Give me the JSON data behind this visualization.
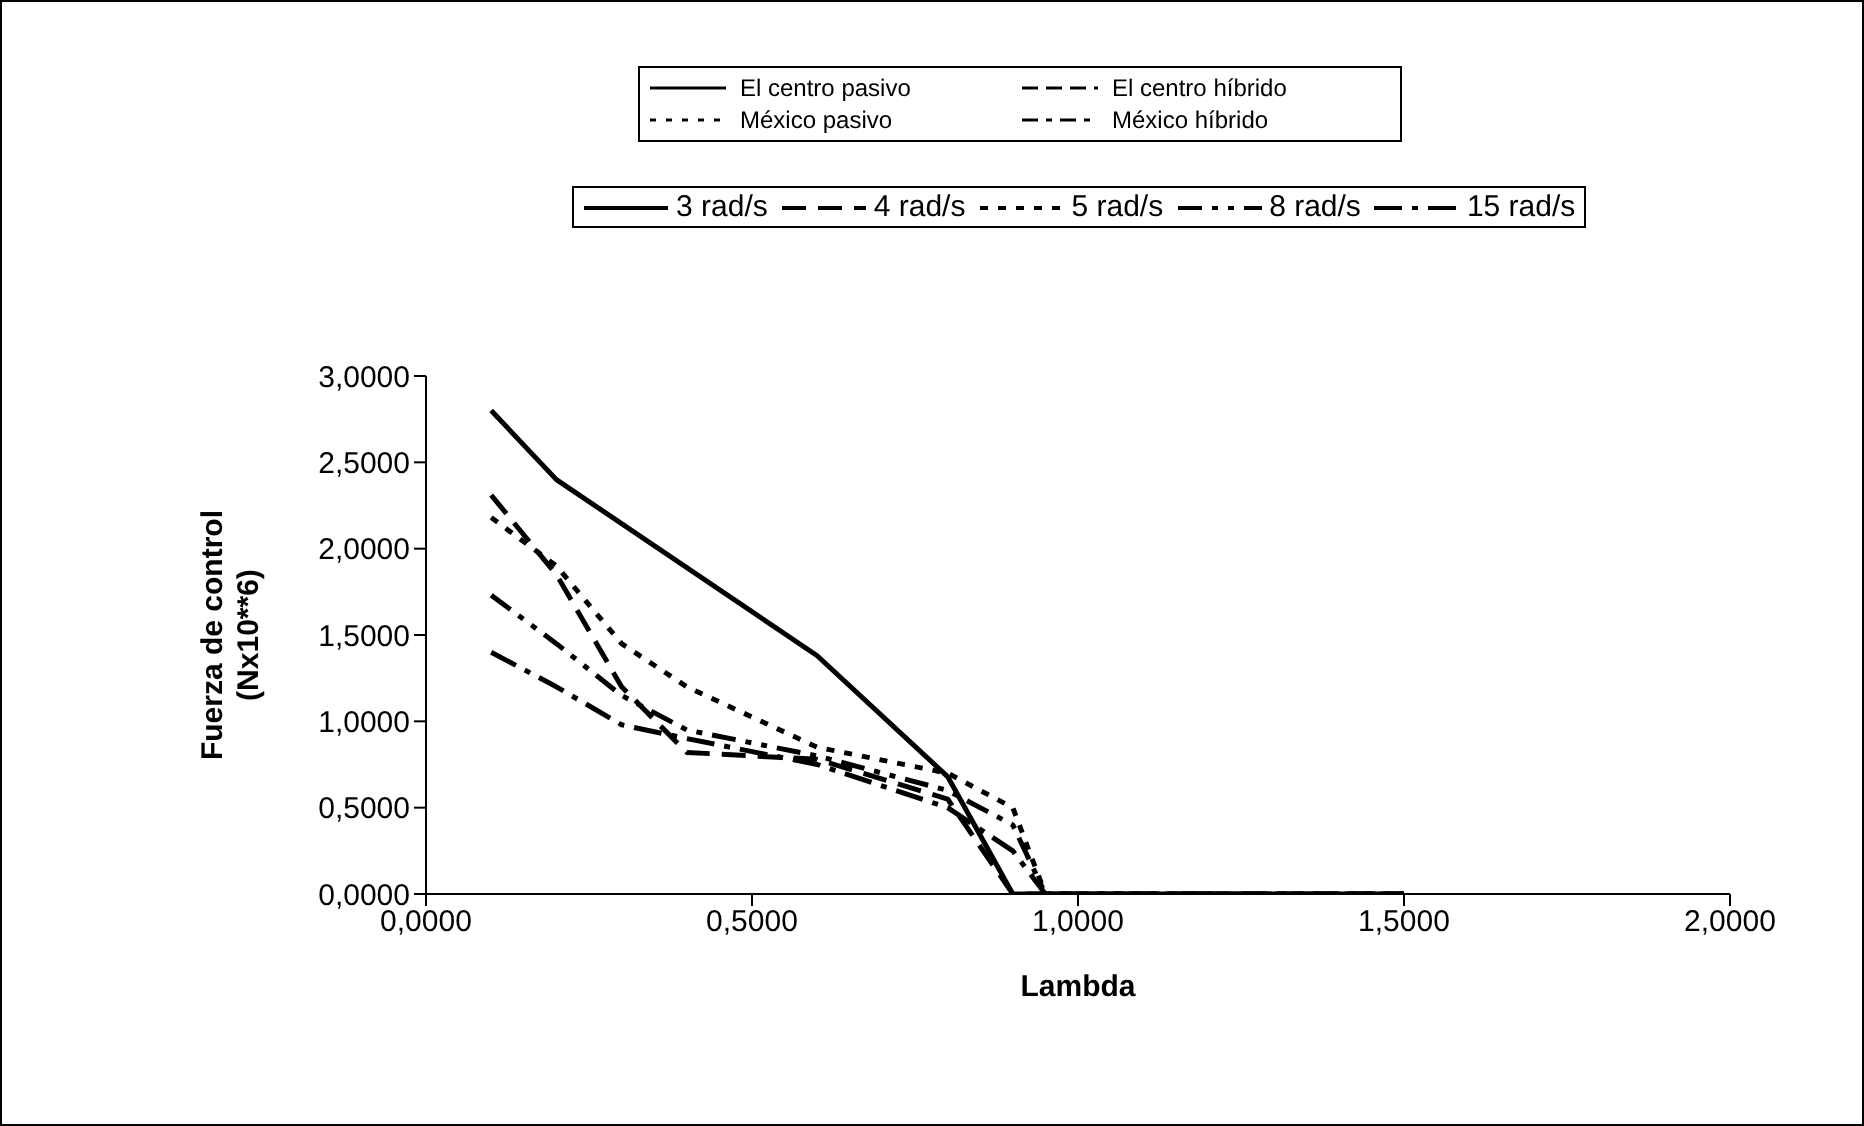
{
  "chart_data": {
    "type": "line",
    "xlabel": "Lambda",
    "ylabel": "Fuerza de control (Nx10**6)",
    "annotations": [
      "El centro pasivo",
      "El centro híbrido",
      "México pasivo",
      "México híbrido"
    ],
    "xlim": [
      0,
      2
    ],
    "xticks": [
      {
        "value": 0,
        "label": "0,0000"
      },
      {
        "value": 0.5,
        "label": "0,5000"
      },
      {
        "value": 1,
        "label": "1,0000"
      },
      {
        "value": 1.5,
        "label": "1,5000"
      },
      {
        "value": 2,
        "label": "2,0000"
      }
    ],
    "ylim": [
      0,
      3
    ],
    "yticks": [
      {
        "value": 0,
        "label": "0,0000"
      },
      {
        "value": 0.5,
        "label": "0,5000"
      },
      {
        "value": 1,
        "label": "1,0000"
      },
      {
        "value": 1.5,
        "label": "1,5000"
      },
      {
        "value": 2,
        "label": "2,0000"
      },
      {
        "value": 2.5,
        "label": "2,5000"
      },
      {
        "value": 3,
        "label": "3,0000"
      }
    ],
    "grid": false,
    "legend": "top",
    "marker": "none",
    "series": [
      {
        "name": "3 rad/s",
        "color": "#000000",
        "line_style": "solid",
        "x": [
          0.1,
          0.2,
          0.6,
          0.8,
          0.9,
          1.5
        ],
        "values": [
          2.8,
          2.4,
          1.38,
          0.68,
          0,
          0
        ]
      },
      {
        "name": "4 rad/s",
        "color": "#000000",
        "line_style": "dashed",
        "x": [
          0.1,
          0.2,
          0.3,
          0.4,
          0.6,
          0.8,
          0.9,
          1.5
        ],
        "values": [
          2.31,
          1.85,
          1.2,
          0.82,
          0.78,
          0.55,
          0,
          0
        ]
      },
      {
        "name": "5 rad/s",
        "color": "#000000",
        "line_style": "dotted",
        "x": [
          0.1,
          0.2,
          0.3,
          0.4,
          0.6,
          0.8,
          0.9,
          0.95,
          1.5
        ],
        "values": [
          2.18,
          1.9,
          1.45,
          1.2,
          0.85,
          0.7,
          0.5,
          0,
          0
        ]
      },
      {
        "name": "8 rad/s",
        "color": "#000000",
        "line_style": "dashdot",
        "x": [
          0.1,
          0.2,
          0.3,
          0.4,
          0.6,
          0.8,
          0.9,
          0.95,
          1.5
        ],
        "values": [
          1.73,
          1.45,
          1.15,
          0.95,
          0.8,
          0.6,
          0.4,
          0,
          0
        ]
      },
      {
        "name": "15 rad/s",
        "color": "#000000",
        "line_style": "longdashdot",
        "x": [
          0.1,
          0.2,
          0.3,
          0.4,
          0.6,
          0.8,
          0.9,
          0.95,
          1.5
        ],
        "values": [
          1.4,
          1.2,
          0.98,
          0.9,
          0.75,
          0.5,
          0.25,
          0,
          0
        ]
      }
    ]
  }
}
